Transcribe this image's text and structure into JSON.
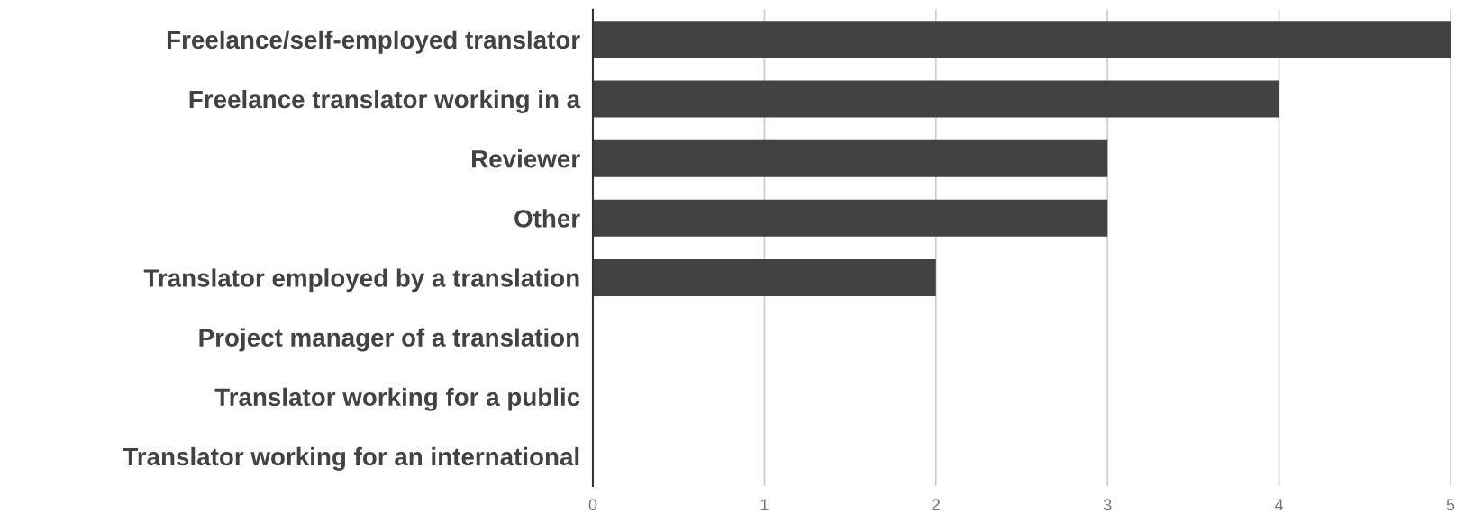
{
  "chart_data": {
    "type": "bar",
    "orientation": "horizontal",
    "categories": [
      "Freelance/self-employed translator",
      "Freelance translator working in a",
      "Reviewer",
      "Other",
      "Translator employed by a translation",
      "Project manager of a translation",
      "Translator working for a public",
      "Translator working for an international"
    ],
    "values": [
      5,
      4,
      3,
      3,
      2,
      0,
      0,
      0
    ],
    "color": "#424242",
    "xlim": [
      0,
      5
    ],
    "xticks": [
      0,
      1,
      2,
      3,
      4,
      5
    ],
    "grid": "x"
  }
}
